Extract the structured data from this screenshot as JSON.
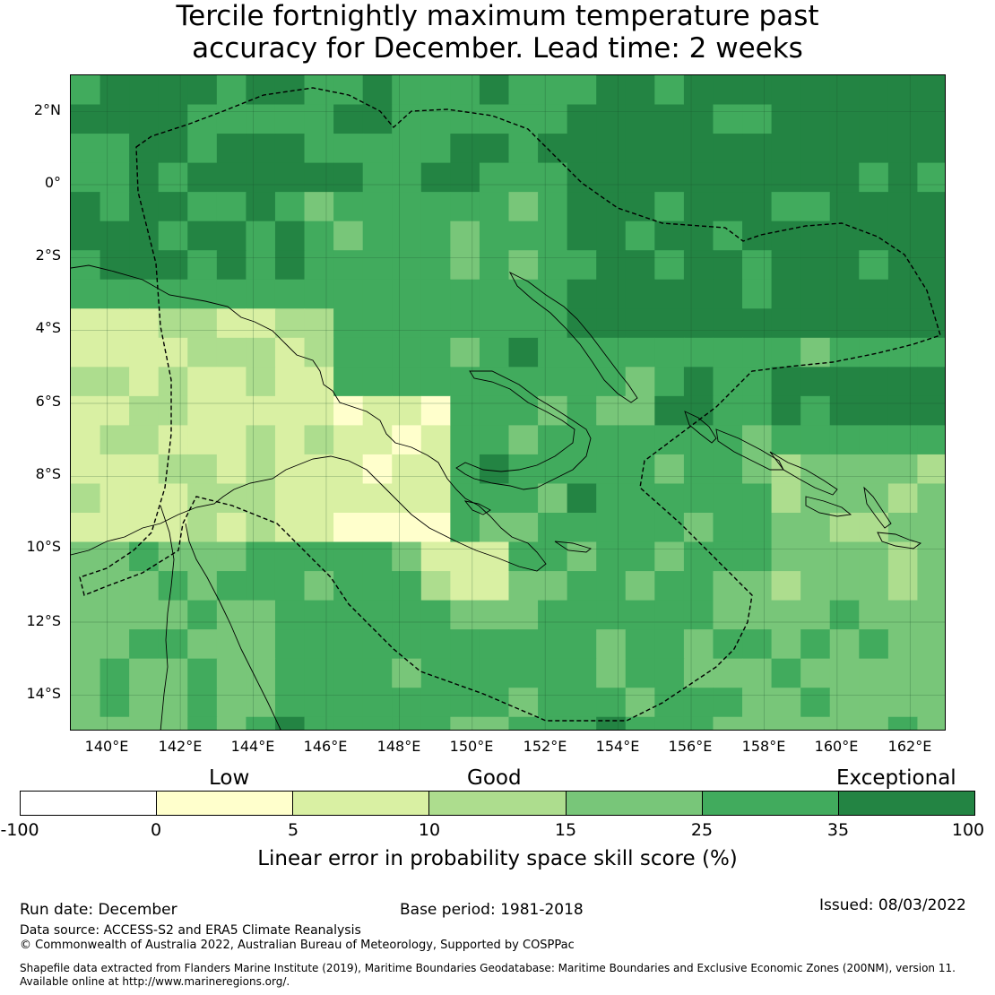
{
  "title": {
    "line1": "Tercile fortnightly maximum temperature past",
    "line2": "accuracy for December. Lead time: 2 weeks"
  },
  "map": {
    "lat_labels": [
      "2°N",
      "0°",
      "2°S",
      "4°S",
      "6°S",
      "8°S",
      "10°S",
      "12°S",
      "14°S"
    ],
    "lon_labels": [
      "140°E",
      "142°E",
      "144°E",
      "146°E",
      "148°E",
      "150°E",
      "152°E",
      "154°E",
      "156°E",
      "158°E",
      "160°E",
      "162°E"
    ],
    "lat_range": [
      -15,
      3
    ],
    "lon_range": [
      139,
      163
    ],
    "cell_size_deg": 0.8
  },
  "colorbar": {
    "category_labels": [
      "Low",
      "Good",
      "Exceptional"
    ],
    "ticks": [
      "-100",
      "0",
      "5",
      "10",
      "15",
      "25",
      "35",
      "100"
    ],
    "colors": [
      "#ffffff",
      "#ffffcc",
      "#d9f0a3",
      "#addd8e",
      "#78c679",
      "#41ab5d",
      "#238443"
    ],
    "title": "Linear error in probability space skill score (%)"
  },
  "footer": {
    "run_date": "Run date: December",
    "base_period": "Base period: 1981-2018",
    "issued": "Issued: 08/03/2022",
    "data_source": "Data source: ACCESS-S2 and ERA5 Climate Reanalysis",
    "copyright": "© Commonwealth of Australia 2022, Australian Bureau of Meteorology, Supported by COSPPac",
    "shapefile_line1": "Shapefile data extracted from Flanders Marine Institute (2019), Maritime Boundaries Geodatabase: Maritime Boundaries and Exclusive Economic Zones (200NM), version 11.",
    "shapefile_line2": "Available online at http://www.marineregions.org/."
  }
}
